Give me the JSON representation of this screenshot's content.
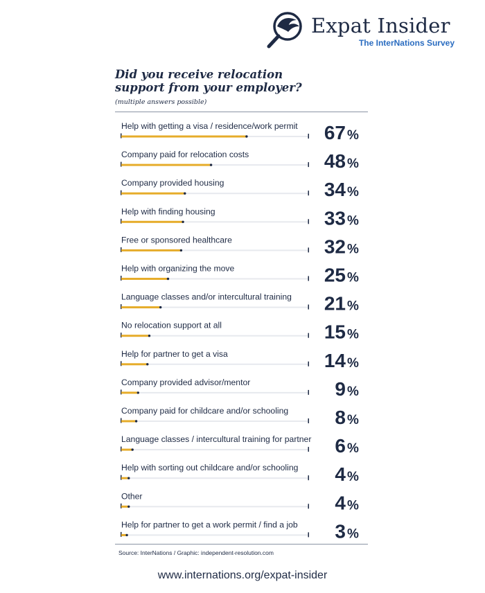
{
  "brand": {
    "name": "Expat Insider",
    "subtitle": "The InterNations Survey"
  },
  "footer": {
    "source": "Source: InterNations / Graphic: independent-resolution.com",
    "url": "www.internations.org/expat-insider"
  },
  "colors": {
    "bar": "#e6ac2a",
    "track": "#e7e9ee",
    "text": "#1e2a44",
    "accent": "#2a6cc0"
  },
  "chart_data": {
    "type": "bar",
    "orientation": "horizontal",
    "title": "Did you receive relocation support from your employer?",
    "subtitle": "(multiple answers possible)",
    "unit": "%",
    "xlim": [
      0,
      100
    ],
    "categories": [
      "Help with getting a visa / residence/work permit",
      "Company paid for relocation costs",
      "Company provided housing",
      "Help with finding housing",
      "Free or sponsored healthcare",
      "Help with organizing the move",
      "Language classes and/or intercultural training",
      "No relocation support at all",
      "Help for partner to get a visa",
      "Company provided advisor/mentor",
      "Company paid for childcare and/or schooling",
      "Language classes / intercultural training for partner",
      "Help with sorting out childcare and/or schooling",
      "Other",
      "Help for partner to get a work permit / find a job"
    ],
    "values": [
      67,
      48,
      34,
      33,
      32,
      25,
      21,
      15,
      14,
      9,
      8,
      6,
      4,
      4,
      3
    ]
  }
}
